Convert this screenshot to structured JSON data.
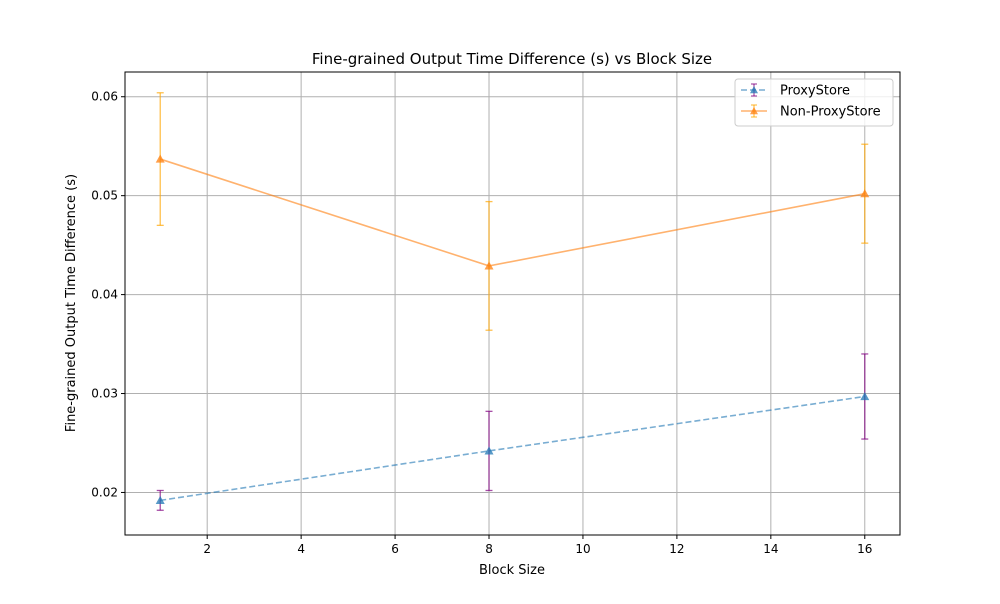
{
  "chart_data": {
    "type": "line",
    "title": "Fine-grained Output Time Difference (s) vs Block Size",
    "xlabel": "Block Size",
    "ylabel": "Fine-grained Output Time Difference (s)",
    "xlim": [
      0.25,
      16.75
    ],
    "ylim": [
      0.0157,
      0.0625
    ],
    "xticks": [
      2,
      4,
      6,
      8,
      10,
      12,
      14,
      16
    ],
    "yticks": [
      0.02,
      0.03,
      0.04,
      0.05,
      0.06
    ],
    "xtick_labels": [
      "2",
      "4",
      "6",
      "8",
      "10",
      "12",
      "14",
      "16"
    ],
    "ytick_labels": [
      "0.02",
      "0.03",
      "0.04",
      "0.05",
      "0.06"
    ],
    "grid": true,
    "legend_position": "top-right",
    "x": [
      1,
      8,
      16
    ],
    "series": [
      {
        "name": "ProxyStore",
        "values": [
          0.0192,
          0.0242,
          0.0297
        ],
        "errors": [
          0.001,
          0.004,
          0.0043
        ],
        "line_color": "#1f77b4",
        "error_color": "#800080",
        "line_style": "dashed",
        "marker": "triangle"
      },
      {
        "name": "Non-ProxyStore",
        "values": [
          0.0537,
          0.0429,
          0.0502
        ],
        "errors": [
          0.0067,
          0.0065,
          0.005
        ],
        "line_color": "#ff7f0e",
        "error_color": "#ffa500",
        "line_style": "solid",
        "marker": "triangle"
      }
    ]
  }
}
